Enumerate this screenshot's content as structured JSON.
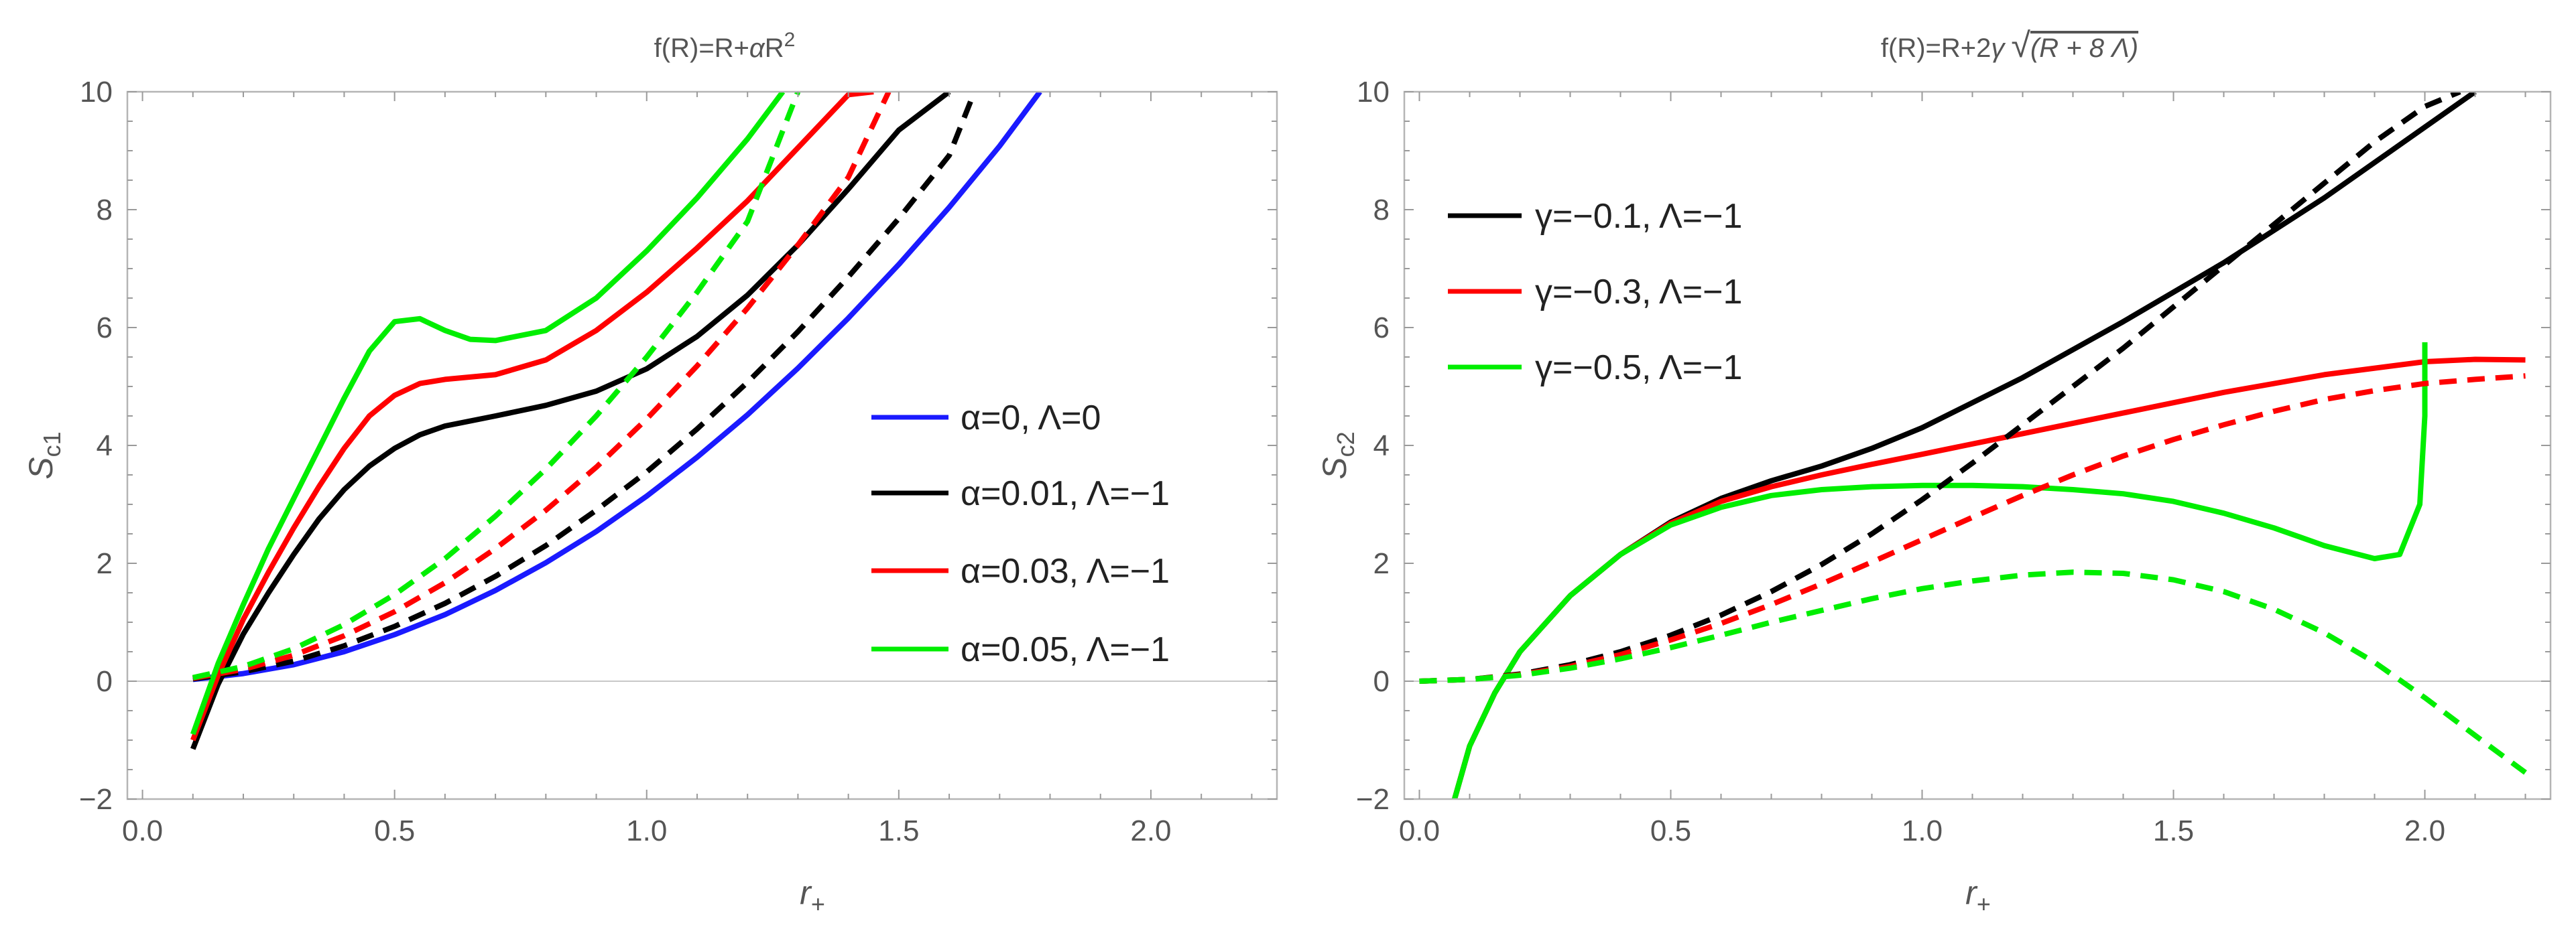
{
  "chart_data": [
    {
      "type": "line",
      "title": "f(R)=R+αR²",
      "title_parts": {
        "base": "f(R)=R+",
        "coef": "α",
        "power_base": "R",
        "exponent": "2"
      },
      "xlabel": "r₊",
      "xlabel_parts": {
        "base": "r",
        "sub": "+"
      },
      "ylabel": "S_c1",
      "ylabel_parts": {
        "base": "S",
        "sub": "c1"
      },
      "xlim": [
        -0.03,
        2.25
      ],
      "ylim": [
        -2,
        10
      ],
      "xticks": [
        0.0,
        0.5,
        1.0,
        1.5,
        2.0
      ],
      "xtick_labels": [
        "0.0",
        "0.5",
        "1.0",
        "1.5",
        "2.0"
      ],
      "yticks": [
        -2,
        0,
        2,
        4,
        6,
        8,
        10
      ],
      "ytick_labels": [
        "−2",
        "0",
        "2",
        "4",
        "6",
        "8",
        "10"
      ],
      "legend_position": "center-right",
      "legend": [
        {
          "label": "α=0, Λ=0",
          "color": "#1a1aff"
        },
        {
          "label": "α=0.01, Λ=−1",
          "color": "#000000"
        },
        {
          "label": "α=0.03, Λ=−1",
          "color": "#ff0000"
        },
        {
          "label": "α=0.05, Λ=−1",
          "color": "#00ee00"
        }
      ],
      "series": [
        {
          "name": "α=0, Λ=0",
          "color": "#1a1aff",
          "style": "solid",
          "x": [
            0.1,
            0.2,
            0.3,
            0.4,
            0.5,
            0.6,
            0.7,
            0.8,
            0.9,
            1.0,
            1.1,
            1.2,
            1.3,
            1.4,
            1.5,
            1.6,
            1.7,
            1.78
          ],
          "y": [
            0.03,
            0.13,
            0.28,
            0.5,
            0.79,
            1.13,
            1.54,
            2.01,
            2.54,
            3.14,
            3.8,
            4.52,
            5.31,
            6.16,
            7.07,
            8.04,
            9.08,
            10.0
          ]
        },
        {
          "name": "α=0.01, Λ=−1",
          "color": "#000000",
          "style": "solid",
          "x": [
            0.1,
            0.15,
            0.2,
            0.25,
            0.3,
            0.35,
            0.4,
            0.45,
            0.5,
            0.55,
            0.6,
            0.7,
            0.8,
            0.9,
            1.0,
            1.1,
            1.2,
            1.3,
            1.4,
            1.5,
            1.6
          ],
          "y": [
            -1.15,
            -0.05,
            0.8,
            1.5,
            2.15,
            2.75,
            3.25,
            3.65,
            3.95,
            4.18,
            4.33,
            4.5,
            4.68,
            4.92,
            5.3,
            5.85,
            6.55,
            7.4,
            8.35,
            9.35,
            10.0
          ]
        },
        {
          "name": "α=0.03, Λ=−1",
          "color": "#ff0000",
          "style": "solid",
          "x": [
            0.1,
            0.15,
            0.2,
            0.25,
            0.3,
            0.35,
            0.4,
            0.45,
            0.5,
            0.55,
            0.6,
            0.7,
            0.8,
            0.9,
            1.0,
            1.1,
            1.2,
            1.3,
            1.4,
            1.45
          ],
          "y": [
            -1.0,
            0.1,
            1.05,
            1.85,
            2.6,
            3.3,
            3.95,
            4.5,
            4.85,
            5.05,
            5.12,
            5.2,
            5.45,
            5.95,
            6.6,
            7.35,
            8.15,
            9.05,
            9.95,
            10.0
          ]
        },
        {
          "name": "α=0.05, Λ=−1",
          "color": "#00ee00",
          "style": "solid",
          "x": [
            0.1,
            0.15,
            0.2,
            0.25,
            0.3,
            0.35,
            0.4,
            0.45,
            0.5,
            0.55,
            0.6,
            0.65,
            0.7,
            0.8,
            0.9,
            1.0,
            1.1,
            1.2,
            1.27
          ],
          "y": [
            -0.9,
            0.3,
            1.3,
            2.25,
            3.1,
            3.95,
            4.8,
            5.6,
            6.1,
            6.15,
            5.95,
            5.8,
            5.78,
            5.95,
            6.5,
            7.3,
            8.2,
            9.2,
            10.0
          ]
        },
        {
          "name": "α=0.01, Λ=−1 (dashed)",
          "color": "#000000",
          "style": "dashed",
          "x": [
            0.1,
            0.2,
            0.3,
            0.4,
            0.5,
            0.6,
            0.7,
            0.8,
            0.9,
            1.0,
            1.1,
            1.2,
            1.3,
            1.4,
            1.5,
            1.6,
            1.65
          ],
          "y": [
            0.04,
            0.16,
            0.34,
            0.6,
            0.93,
            1.32,
            1.78,
            2.3,
            2.9,
            3.55,
            4.28,
            5.07,
            5.93,
            6.86,
            7.85,
            8.92,
            10.0
          ]
        },
        {
          "name": "α=0.03, Λ=−1 (dashed)",
          "color": "#ff0000",
          "style": "dashed",
          "x": [
            0.1,
            0.2,
            0.3,
            0.4,
            0.5,
            0.6,
            0.7,
            0.8,
            0.9,
            1.0,
            1.1,
            1.2,
            1.3,
            1.4,
            1.48
          ],
          "y": [
            0.05,
            0.2,
            0.44,
            0.77,
            1.18,
            1.67,
            2.25,
            2.9,
            3.63,
            4.45,
            5.35,
            6.33,
            7.4,
            8.55,
            10.0
          ]
        },
        {
          "name": "α=0.05, Λ=−1 (dashed)",
          "color": "#00ee00",
          "style": "dashed",
          "x": [
            0.1,
            0.2,
            0.3,
            0.4,
            0.5,
            0.6,
            0.7,
            0.8,
            0.9,
            1.0,
            1.1,
            1.2,
            1.3
          ],
          "y": [
            0.06,
            0.25,
            0.55,
            0.96,
            1.47,
            2.08,
            2.8,
            3.6,
            4.5,
            5.5,
            6.6,
            7.8,
            10.0
          ]
        }
      ]
    },
    {
      "type": "line",
      "title": "f(R)=R+2γ √(R + 8 Λ)",
      "title_parts": {
        "base": "f(R)=R+2",
        "coef": "γ",
        "radicand": "(R + 8 Λ)"
      },
      "xlabel": "r₊",
      "xlabel_parts": {
        "base": "r",
        "sub": "+"
      },
      "ylabel": "S_c2",
      "ylabel_parts": {
        "base": "S",
        "sub": "c2"
      },
      "xlim": [
        -0.03,
        2.25
      ],
      "ylim": [
        -2,
        10
      ],
      "xticks": [
        0.0,
        0.5,
        1.0,
        1.5,
        2.0
      ],
      "xtick_labels": [
        "0.0",
        "0.5",
        "1.0",
        "1.5",
        "2.0"
      ],
      "yticks": [
        -2,
        0,
        2,
        4,
        6,
        8,
        10
      ],
      "ytick_labels": [
        "−2",
        "0",
        "2",
        "4",
        "6",
        "8",
        "10"
      ],
      "legend_position": "top-left",
      "legend": [
        {
          "label": "γ=−0.1, Λ=−1",
          "color": "#000000"
        },
        {
          "label": "γ=−0.3, Λ=−1",
          "color": "#ff0000"
        },
        {
          "label": "γ=−0.5, Λ=−1",
          "color": "#00ee00"
        }
      ],
      "series": [
        {
          "name": "γ=−0.1, Λ=−1",
          "color": "#000000",
          "style": "solid",
          "x": [
            0.07,
            0.1,
            0.15,
            0.2,
            0.3,
            0.4,
            0.5,
            0.6,
            0.7,
            0.8,
            0.9,
            1.0,
            1.2,
            1.4,
            1.6,
            1.8,
            2.0,
            2.1
          ],
          "y": [
            -2.0,
            -1.1,
            -0.2,
            0.5,
            1.45,
            2.15,
            2.7,
            3.1,
            3.4,
            3.65,
            3.95,
            4.3,
            5.15,
            6.1,
            7.1,
            8.2,
            9.4,
            10.0
          ]
        },
        {
          "name": "γ=−0.3, Λ=−1",
          "color": "#ff0000",
          "style": "solid",
          "x": [
            0.07,
            0.1,
            0.15,
            0.2,
            0.3,
            0.4,
            0.5,
            0.6,
            0.7,
            0.8,
            0.9,
            1.0,
            1.2,
            1.4,
            1.6,
            1.8,
            2.0,
            2.1,
            2.2
          ],
          "y": [
            -2.0,
            -1.1,
            -0.2,
            0.5,
            1.45,
            2.15,
            2.68,
            3.05,
            3.3,
            3.5,
            3.68,
            3.85,
            4.2,
            4.55,
            4.9,
            5.2,
            5.42,
            5.46,
            5.45
          ]
        },
        {
          "name": "γ=−0.5, Λ=−1",
          "color": "#00ee00",
          "style": "solid",
          "x": [
            0.07,
            0.1,
            0.15,
            0.2,
            0.3,
            0.4,
            0.5,
            0.6,
            0.7,
            0.8,
            0.9,
            1.0,
            1.1,
            1.2,
            1.3,
            1.4,
            1.5,
            1.6,
            1.7,
            1.8,
            1.9,
            1.95,
            1.99,
            2.0,
            2.0
          ],
          "y": [
            -2.0,
            -1.1,
            -0.2,
            0.5,
            1.45,
            2.15,
            2.65,
            2.95,
            3.15,
            3.25,
            3.3,
            3.32,
            3.32,
            3.3,
            3.25,
            3.18,
            3.05,
            2.85,
            2.6,
            2.3,
            2.08,
            2.15,
            3.0,
            4.5,
            5.75
          ]
        },
        {
          "name": "γ=−0.1, Λ=−1 (dashed)",
          "color": "#000000",
          "style": "dashed",
          "x": [
            0.0,
            0.1,
            0.2,
            0.3,
            0.4,
            0.5,
            0.6,
            0.7,
            0.8,
            0.9,
            1.0,
            1.1,
            1.2,
            1.3,
            1.4,
            1.5,
            1.6,
            1.7,
            1.8,
            1.9,
            2.0,
            2.07
          ],
          "y": [
            0.0,
            0.03,
            0.12,
            0.28,
            0.5,
            0.78,
            1.12,
            1.52,
            1.98,
            2.5,
            3.08,
            3.7,
            4.35,
            5.0,
            5.65,
            6.35,
            7.05,
            7.75,
            8.45,
            9.15,
            9.75,
            10.0
          ]
        },
        {
          "name": "γ=−0.3, Λ=−1 (dashed)",
          "color": "#ff0000",
          "style": "dashed",
          "x": [
            0.0,
            0.1,
            0.2,
            0.3,
            0.4,
            0.5,
            0.6,
            0.7,
            0.8,
            0.9,
            1.0,
            1.1,
            1.2,
            1.3,
            1.4,
            1.5,
            1.6,
            1.7,
            1.8,
            1.9,
            2.0,
            2.1,
            2.2
          ],
          "y": [
            0.0,
            0.03,
            0.11,
            0.25,
            0.45,
            0.7,
            0.98,
            1.3,
            1.65,
            2.02,
            2.4,
            2.78,
            3.15,
            3.5,
            3.82,
            4.1,
            4.35,
            4.58,
            4.78,
            4.93,
            5.05,
            5.12,
            5.18
          ]
        },
        {
          "name": "γ=−0.5, Λ=−1 (dashed)",
          "color": "#00ee00",
          "style": "dashed",
          "x": [
            0.0,
            0.1,
            0.2,
            0.3,
            0.4,
            0.5,
            0.6,
            0.7,
            0.8,
            0.9,
            1.0,
            1.1,
            1.2,
            1.3,
            1.4,
            1.5,
            1.6,
            1.7,
            1.8,
            1.9,
            2.0,
            2.1,
            2.2
          ],
          "y": [
            0.0,
            0.03,
            0.1,
            0.22,
            0.38,
            0.57,
            0.78,
            1.0,
            1.2,
            1.4,
            1.57,
            1.7,
            1.8,
            1.85,
            1.83,
            1.72,
            1.52,
            1.22,
            0.82,
            0.32,
            -0.28,
            -0.92,
            -1.55
          ]
        }
      ]
    }
  ]
}
